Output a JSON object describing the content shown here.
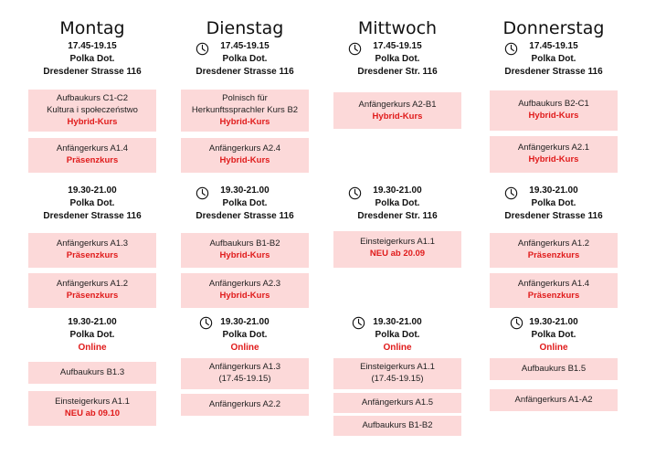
{
  "colors": {
    "card_bg": "#fcd9d9",
    "status_red": "#e01b1b"
  },
  "icons": {
    "session_icon": "clock-icon"
  },
  "days": [
    {
      "name": "Montag",
      "slot1": {
        "time": "17.45-19.15",
        "place": "Polka Dot.",
        "address": "Dresdener Strasse 116"
      },
      "slot1_courses": [
        {
          "line1": "Aufbaukurs C1-C2",
          "line2": "Kultura i społeczeństwo",
          "status": "Hybrid-Kurs"
        },
        {
          "line1": "Anfängerkurs A1.4",
          "status": "Präsenzkurs"
        }
      ],
      "slot2": {
        "time": "19.30-21.00",
        "place": "Polka Dot.",
        "address": "Dresdener Strasse 116"
      },
      "slot2_courses": [
        {
          "line1": "Anfängerkurs A1.3",
          "status": "Präsenzkurs"
        },
        {
          "line1": "Anfängerkurs A1.2",
          "status": "Präsenzkurs"
        }
      ],
      "slot3": {
        "time": "19.30-21.00",
        "place": "Polka Dot.",
        "mode": "Online"
      },
      "slot3_courses": [
        {
          "line1": "Aufbaukurs B1.3"
        },
        {
          "line1": "Einsteigerkurs A1.1",
          "status": "NEU ab 09.10"
        }
      ]
    },
    {
      "name": "Dienstag",
      "slot1": {
        "time": "17.45-19.15",
        "place": "Polka Dot.",
        "address": "Dresdener Strasse 116"
      },
      "slot1_courses": [
        {
          "line1": "Polnisch für",
          "line2": "Herkunftssprachler Kurs B2",
          "status": "Hybrid-Kurs"
        },
        {
          "line1": "Anfängerkurs A2.4",
          "status": "Hybrid-Kurs"
        }
      ],
      "slot2": {
        "time": "19.30-21.00",
        "place": "Polka Dot.",
        "address": "Dresdener Strasse 116"
      },
      "slot2_courses": [
        {
          "line1": "Aufbaukurs B1-B2",
          "status": "Hybrid-Kurs"
        },
        {
          "line1": "Anfängerkurs A2.3",
          "status": "Hybrid-Kurs"
        }
      ],
      "slot3": {
        "time": "19.30-21.00",
        "place": "Polka Dot.",
        "mode": "Online"
      },
      "slot3_courses": [
        {
          "line1": "Anfängerkurs A1.3",
          "line2": "(17.45-19.15)"
        },
        {
          "line1": "Anfängerkurs A2.2"
        }
      ]
    },
    {
      "name": "Mittwoch",
      "slot1": {
        "time": "17.45-19.15",
        "place": "Polka Dot.",
        "address": "Dresdener Str. 116"
      },
      "slot1_courses": [
        {
          "line1": "Anfängerkurs A2-B1",
          "status": "Hybrid-Kurs"
        }
      ],
      "slot2": {
        "time": "19.30-21.00",
        "place": "Polka Dot.",
        "address": "Dresdener Str. 116"
      },
      "slot2_courses": [
        {
          "line1": "Einsteigerkurs A1.1",
          "status": "NEU ab 20.09"
        }
      ],
      "slot3": {
        "time": "19.30-21.00",
        "place": "Polka Dot.",
        "mode": "Online"
      },
      "slot3_courses": [
        {
          "line1": "Einsteigerkurs A1.1",
          "line2": "(17.45-19.15)"
        },
        {
          "line1": "Anfängerkurs A1.5"
        },
        {
          "line1": "Aufbaukurs B1-B2"
        }
      ]
    },
    {
      "name": "Donnerstag",
      "slot1": {
        "time": "17.45-19.15",
        "place": "Polka Dot.",
        "address": "Dresdener Strasse 116"
      },
      "slot1_courses": [
        {
          "line1": "Aufbaukurs B2-C1",
          "status": "Hybrid-Kurs"
        },
        {
          "line1": "Anfängerkurs A2.1",
          "status": "Hybrid-Kurs"
        }
      ],
      "slot2": {
        "time": "19.30-21.00",
        "place": "Polka Dot.",
        "address": "Dresdener Strasse 116"
      },
      "slot2_courses": [
        {
          "line1": "Anfängerkurs A1.2",
          "status": "Präsenzkurs"
        },
        {
          "line1": "Anfängerkurs A1.4",
          "status": "Präsenzkurs"
        }
      ],
      "slot3": {
        "time": "19.30-21.00",
        "place": "Polka Dot.",
        "mode": "Online"
      },
      "slot3_courses": [
        {
          "line1": "Aufbaukurs B1.5"
        },
        {
          "line1": "Anfängerkurs A1-A2"
        }
      ]
    }
  ]
}
